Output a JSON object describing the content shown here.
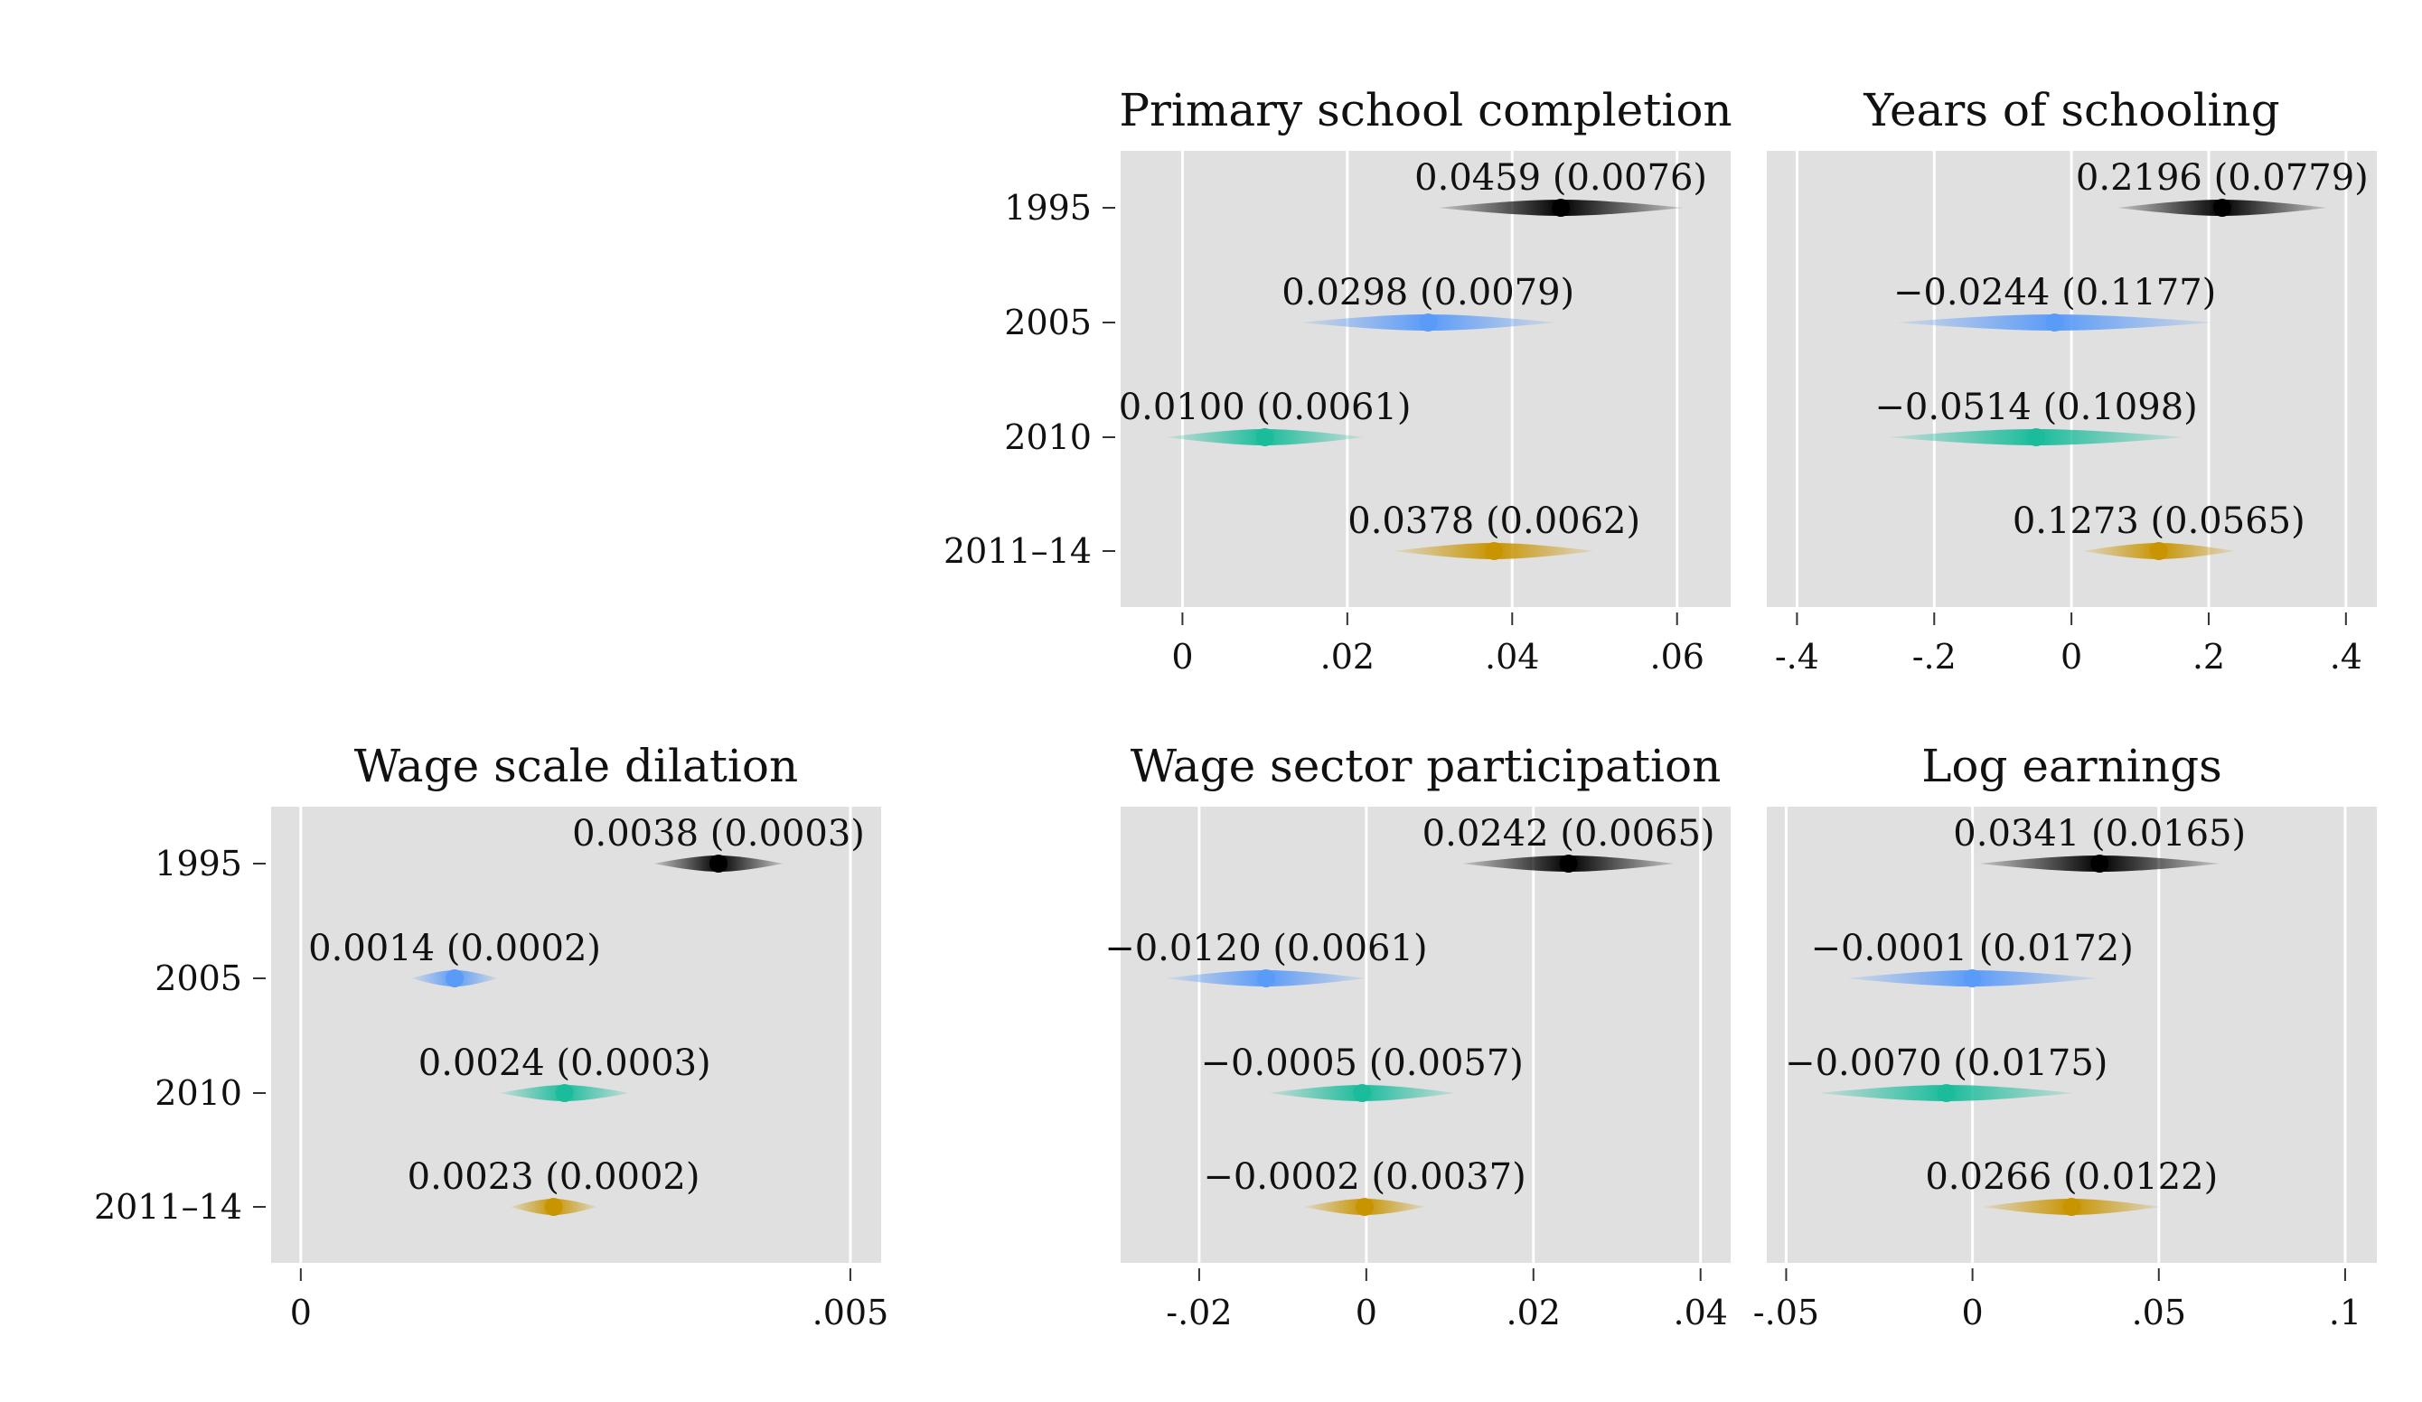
{
  "figure": {
    "categories": [
      "1995",
      "2005",
      "2010",
      "2011–14"
    ],
    "colors": {
      "1995": "#000000",
      "2005": "#5b9bf8",
      "2010": "#1abc9c",
      "2011–14": "#c89400",
      "panel_background": "#e0e0e0",
      "grid": "#ffffff"
    }
  },
  "chart_data": [
    {
      "id": "primary",
      "type": "scatter",
      "title": "Primary school completion",
      "categories": [
        "1995",
        "2005",
        "2010",
        "2011–14"
      ],
      "estimates": [
        0.0459,
        0.0298,
        0.01,
        0.0378
      ],
      "std_errors": [
        0.0076,
        0.0079,
        0.0061,
        0.0062
      ],
      "labels": [
        "0.0459 (0.0076)",
        "0.0298 (0.0079)",
        "0.0100 (0.0061)",
        "0.0378 (0.0062)"
      ],
      "xlim": [
        -0.0075,
        0.0665
      ],
      "xticks": [
        0,
        0.02,
        0.04,
        0.06
      ],
      "xtick_labels": [
        "0",
        ".02",
        ".04",
        ".06"
      ],
      "grid": true,
      "show_category_labels": true
    },
    {
      "id": "years",
      "type": "scatter",
      "title": "Years of schooling",
      "categories": [
        "1995",
        "2005",
        "2010",
        "2011–14"
      ],
      "estimates": [
        0.2196,
        -0.0244,
        -0.0514,
        0.1273
      ],
      "std_errors": [
        0.0779,
        0.1177,
        0.1098,
        0.0565
      ],
      "labels": [
        "0.2196 (0.0779)",
        "−0.0244 (0.1177)",
        "−0.0514 (0.1098)",
        "0.1273 (0.0565)"
      ],
      "xlim": [
        -0.444,
        0.445
      ],
      "xticks": [
        -0.4,
        -0.2,
        0,
        0.2,
        0.4
      ],
      "xtick_labels": [
        "-.4",
        "-.2",
        "0",
        ".2",
        ".4"
      ],
      "grid": true,
      "show_category_labels": false
    },
    {
      "id": "wagescale",
      "type": "scatter",
      "title": "Wage scale dilation",
      "categories": [
        "1995",
        "2005",
        "2010",
        "2011–14"
      ],
      "estimates": [
        0.0038,
        0.0014,
        0.0024,
        0.0023
      ],
      "std_errors": [
        0.0003,
        0.0002,
        0.0003,
        0.0002
      ],
      "labels": [
        "0.0038 (0.0003)",
        "0.0014 (0.0002)",
        "0.0024 (0.0003)",
        "0.0023 (0.0002)"
      ],
      "xlim": [
        -0.00027,
        0.00528
      ],
      "xticks": [
        0,
        0.005
      ],
      "xtick_labels": [
        "0",
        ".005"
      ],
      "grid": true,
      "show_category_labels": true
    },
    {
      "id": "wagesector",
      "type": "scatter",
      "title": "Wage sector participation",
      "categories": [
        "1995",
        "2005",
        "2010",
        "2011–14"
      ],
      "estimates": [
        0.0242,
        -0.012,
        -0.0005,
        -0.0002
      ],
      "std_errors": [
        0.0065,
        0.0061,
        0.0057,
        0.0037
      ],
      "labels": [
        "0.0242 (0.0065)",
        "−0.0120 (0.0061)",
        "−0.0005 (0.0057)",
        "−0.0002 (0.0037)"
      ],
      "xlim": [
        -0.0294,
        0.0436
      ],
      "xticks": [
        -0.02,
        0,
        0.02,
        0.04
      ],
      "xtick_labels": [
        "-.02",
        "0",
        ".02",
        ".04"
      ],
      "grid": true,
      "show_category_labels": false
    },
    {
      "id": "logearn",
      "type": "scatter",
      "title": "Log earnings",
      "categories": [
        "1995",
        "2005",
        "2010",
        "2011–14"
      ],
      "estimates": [
        0.0341,
        -0.0001,
        -0.007,
        0.0266
      ],
      "std_errors": [
        0.0165,
        0.0172,
        0.0175,
        0.0122
      ],
      "labels": [
        "0.0341 (0.0165)",
        "−0.0001 (0.0172)",
        "−0.0070 (0.0175)",
        "0.0266 (0.0122)"
      ],
      "xlim": [
        -0.0552,
        0.1085
      ],
      "xticks": [
        -0.05,
        0,
        0.05,
        0.1
      ],
      "xtick_labels": [
        "-.05",
        "0",
        ".05",
        ".1"
      ],
      "grid": true,
      "show_category_labels": false
    }
  ]
}
